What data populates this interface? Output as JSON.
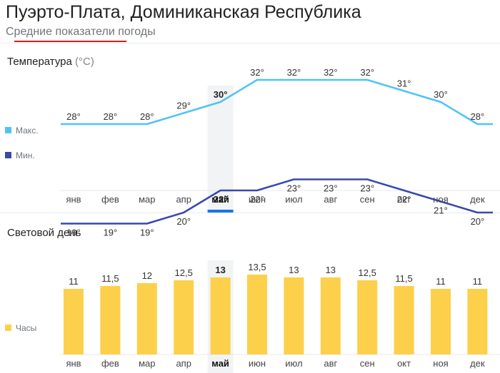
{
  "header": {
    "title": "Пуэрто-Плата, Доминиканская Республика",
    "subtitle": "Средние показатели погоды"
  },
  "colors": {
    "max_line": "#4fc3f7",
    "min_line": "#3949ab",
    "bars": "#fdd04b",
    "highlight": "#f1f3f4",
    "selected_tab": "#1a73e8"
  },
  "selected_month_index": 4,
  "chart_data": [
    {
      "type": "line",
      "title": "Температура",
      "unit": "(°C)",
      "categories": [
        "янв",
        "фев",
        "мар",
        "апр",
        "май",
        "июн",
        "июл",
        "авг",
        "сен",
        "окт",
        "ноя",
        "дек"
      ],
      "series": [
        {
          "name": "Макс.",
          "values": [
            28,
            28,
            28,
            29,
            30,
            32,
            32,
            32,
            32,
            31,
            30,
            28
          ],
          "labels": [
            "28°",
            "28°",
            "28°",
            "29°",
            "30°",
            "32°",
            "32°",
            "32°",
            "32°",
            "31°",
            "30°",
            "28°"
          ]
        },
        {
          "name": "Мин.",
          "values": [
            19,
            19,
            19,
            20,
            22,
            22,
            23,
            23,
            23,
            22,
            21,
            20
          ],
          "labels": [
            "19°",
            "19°",
            "19°",
            "20°",
            "22°",
            "22°",
            "23°",
            "23°",
            "23°",
            "22°",
            "21°",
            "20°"
          ]
        }
      ]
    },
    {
      "type": "bar",
      "title": "Световой день",
      "categories": [
        "янв",
        "фев",
        "мар",
        "апр",
        "май",
        "июн",
        "июл",
        "авг",
        "сен",
        "окт",
        "ноя",
        "дек"
      ],
      "series": [
        {
          "name": "Часы",
          "values": [
            11,
            11.5,
            12,
            12.5,
            13,
            13.5,
            13,
            13,
            12.5,
            11.5,
            11,
            11
          ],
          "labels": [
            "11",
            "11,5",
            "12",
            "12,5",
            "13",
            "13,5",
            "13",
            "13",
            "12,5",
            "11,5",
            "11",
            "11"
          ]
        }
      ]
    }
  ]
}
